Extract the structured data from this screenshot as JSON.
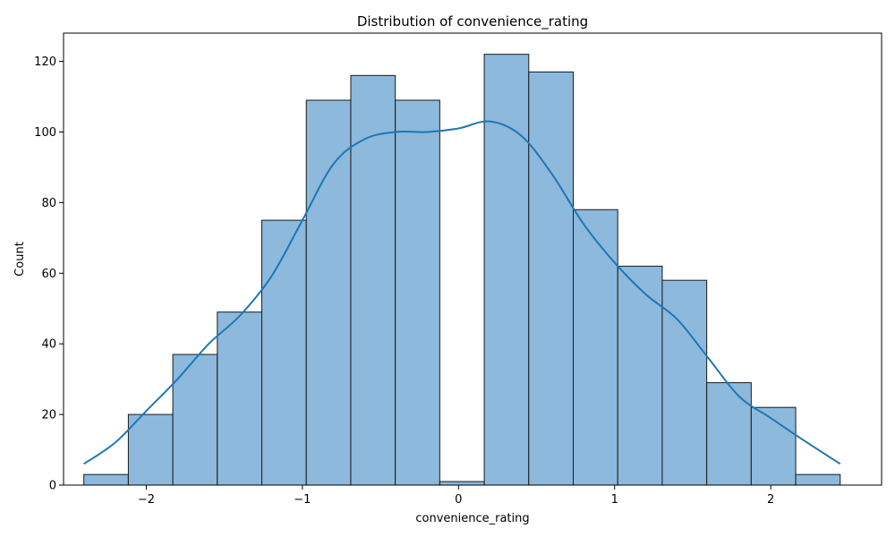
{
  "chart_data": {
    "type": "bar",
    "title": "Distribution of convenience_rating",
    "xlabel": "convenience_rating",
    "ylabel": "Count",
    "xlim": [
      -2.53,
      2.71
    ],
    "ylim": [
      0,
      128
    ],
    "xticks": [
      -2,
      -1,
      0,
      1,
      2
    ],
    "xtick_labels": [
      "−2",
      "−1",
      "0",
      "1",
      "2"
    ],
    "yticks": [
      0,
      20,
      40,
      60,
      80,
      100,
      120
    ],
    "ytick_labels": [
      "0",
      "20",
      "40",
      "60",
      "80",
      "100",
      "120"
    ],
    "grid": false,
    "bin_edges": [
      -2.4,
      -2.115,
      -1.83,
      -1.545,
      -1.26,
      -0.975,
      -0.69,
      -0.405,
      -0.12,
      0.165,
      0.45,
      0.735,
      1.02,
      1.305,
      1.59,
      1.875,
      2.16,
      2.445
    ],
    "values": [
      3,
      20,
      37,
      49,
      75,
      109,
      116,
      109,
      1,
      122,
      117,
      78,
      62,
      58,
      29,
      22,
      3
    ],
    "kde": {
      "x": [
        -2.4,
        -2.2,
        -2.0,
        -1.8,
        -1.6,
        -1.4,
        -1.2,
        -1.0,
        -0.8,
        -0.6,
        -0.4,
        -0.2,
        0.0,
        0.2,
        0.4,
        0.6,
        0.8,
        1.0,
        1.2,
        1.4,
        1.6,
        1.8,
        2.0,
        2.2,
        2.445
      ],
      "y": [
        6,
        12,
        21,
        30,
        40,
        48,
        59,
        75,
        91,
        98,
        100,
        100,
        101,
        103,
        99,
        88,
        74,
        63,
        54,
        47,
        36,
        25,
        19,
        13,
        6
      ]
    },
    "colors": {
      "bar_fill": "#8cb9dc",
      "bar_edge": "#1a1a1a",
      "kde_line": "#1f77b4"
    }
  }
}
